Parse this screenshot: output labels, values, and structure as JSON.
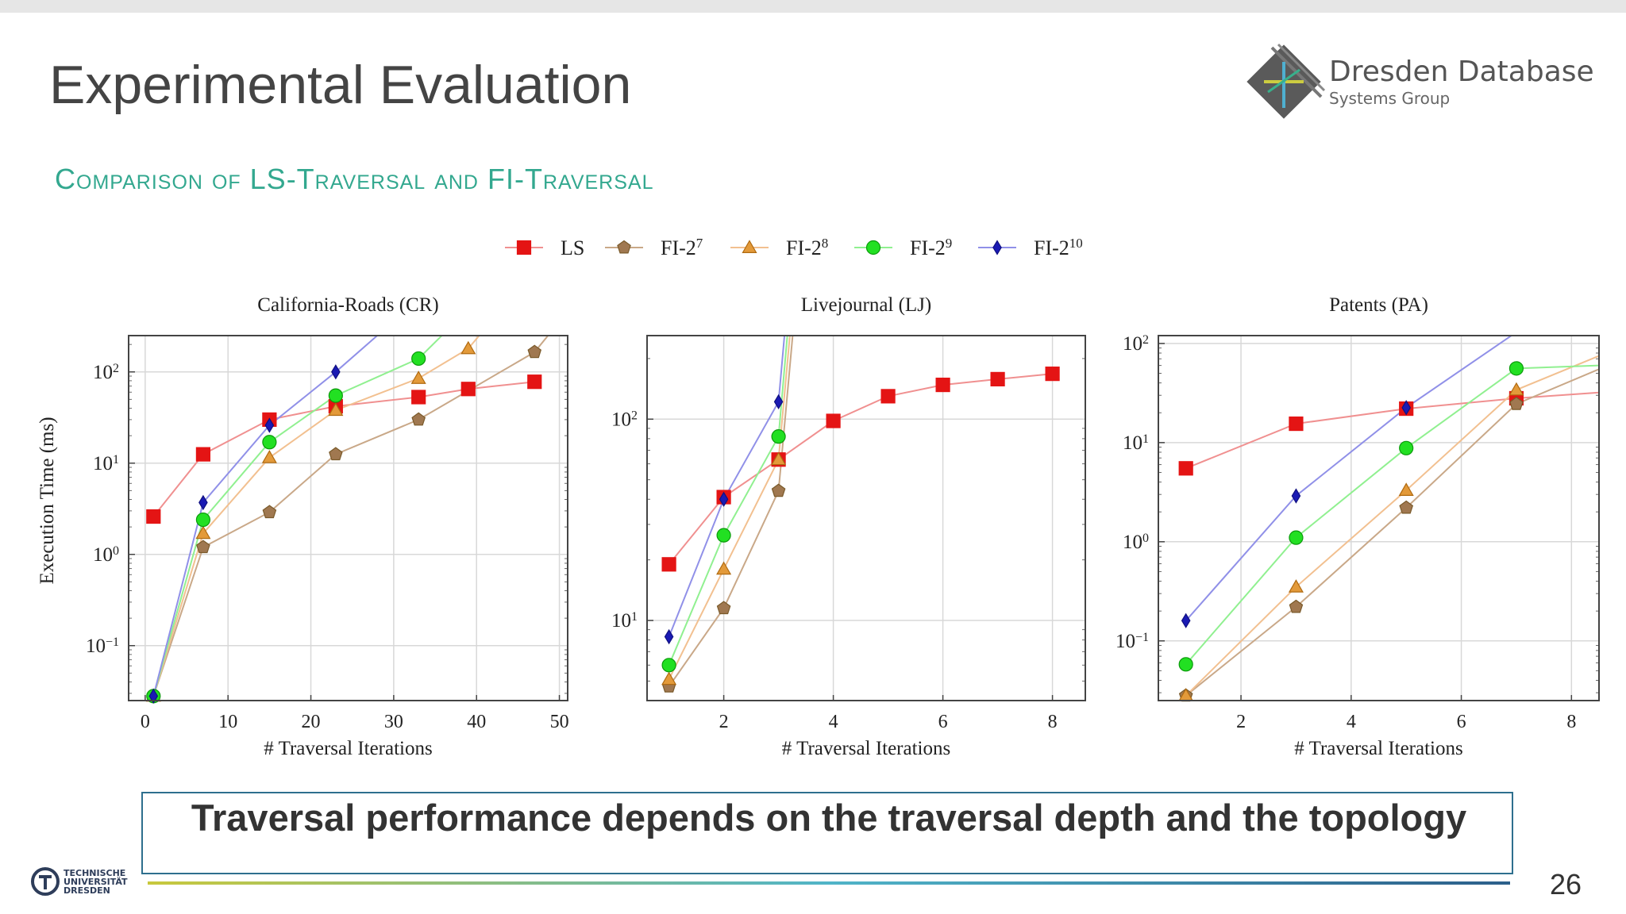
{
  "slide": {
    "title": "Experimental Evaluation",
    "subtitle": "Comparison of LS-Traversal and FI-Traversal",
    "takeaway": "Traversal performance depends on the traversal depth and the topology",
    "page_number": "26",
    "logo_main": "Dresden Database",
    "logo_sub": "Systems Group",
    "university": "TECHNISCHE\nUNIVERSITÄT\nDRESDEN"
  },
  "legend": [
    {
      "name": "LS",
      "sup": ""
    },
    {
      "name": "FI-2",
      "sup": "7"
    },
    {
      "name": "FI-2",
      "sup": "8"
    },
    {
      "name": "FI-2",
      "sup": "9"
    },
    {
      "name": "FI-2",
      "sup": "10"
    }
  ],
  "series_style": [
    {
      "color": "#e41414",
      "fill": "#e41414",
      "marker": "square",
      "line": "#f09090"
    },
    {
      "color": "#7a5a2a",
      "fill": "#a07850",
      "marker": "pentagon",
      "line": "#c9a888"
    },
    {
      "color": "#b06a10",
      "fill": "#e39a3a",
      "marker": "triangle",
      "line": "#f2c090"
    },
    {
      "color": "#0b9a0b",
      "fill": "#22e022",
      "marker": "circle",
      "line": "#90f090"
    },
    {
      "color": "#101080",
      "fill": "#1a1ab4",
      "marker": "diamond",
      "line": "#9090e8"
    }
  ],
  "chart_data": [
    {
      "type": "line",
      "title": "California-Roads (CR)",
      "xlabel": "# Traversal Iterations",
      "ylabel": "Execution Time (ms)",
      "y_scale": "log",
      "xlim": [
        -2,
        51
      ],
      "ylim": [
        0.025,
        250
      ],
      "xticks": [
        0,
        10,
        20,
        30,
        40,
        50
      ],
      "yticks": [
        {
          "v": 0.1,
          "label": "10^-1"
        },
        {
          "v": 1,
          "label": "10^0"
        },
        {
          "v": 10,
          "label": "10^1"
        },
        {
          "v": 100,
          "label": "10^2"
        }
      ],
      "series": [
        {
          "name": "LS",
          "x": [
            1,
            7,
            15,
            23,
            33,
            39,
            47
          ],
          "y": [
            2.6,
            12.5,
            30,
            42,
            53,
            65,
            78
          ]
        },
        {
          "name": "FI-2^7",
          "x": [
            1,
            7,
            15,
            23,
            33,
            47
          ],
          "y": [
            0.028,
            1.2,
            2.9,
            12.5,
            30,
            165
          ],
          "extend": [
            51,
            460
          ]
        },
        {
          "name": "FI-2^8",
          "x": [
            1,
            7,
            15,
            23,
            33,
            39
          ],
          "y": [
            0.028,
            1.7,
            11.5,
            38,
            85,
            180
          ],
          "extend": [
            42,
            380
          ]
        },
        {
          "name": "FI-2^9",
          "x": [
            1,
            7,
            15,
            23,
            33
          ],
          "y": [
            0.028,
            2.4,
            17,
            55,
            140
          ],
          "extend": [
            37,
            320
          ]
        },
        {
          "name": "FI-2^10",
          "x": [
            1,
            7,
            15,
            23
          ],
          "y": [
            0.028,
            3.7,
            26,
            100
          ],
          "extend": [
            29,
            300
          ]
        }
      ]
    },
    {
      "type": "line",
      "title": "Livejournal (LJ)",
      "xlabel": "# Traversal Iterations",
      "ylabel": "",
      "y_scale": "log",
      "xlim": [
        0.6,
        8.6
      ],
      "ylim": [
        4,
        260
      ],
      "xticks": [
        2,
        4,
        6,
        8
      ],
      "yticks": [
        {
          "v": 10,
          "label": "10^1"
        },
        {
          "v": 100,
          "label": "10^2"
        }
      ],
      "series": [
        {
          "name": "LS",
          "x": [
            1,
            2,
            3,
            4,
            5,
            6,
            7,
            8
          ],
          "y": [
            19,
            41,
            63,
            98,
            130,
            148,
            158,
            168
          ]
        },
        {
          "name": "FI-2^7",
          "x": [
            1,
            2,
            3
          ],
          "y": [
            4.7,
            11.5,
            44
          ],
          "extend": [
            3.32,
            400
          ]
        },
        {
          "name": "FI-2^8",
          "x": [
            1,
            2,
            3
          ],
          "y": [
            5.1,
            18,
            63
          ],
          "extend": [
            3.27,
            400
          ]
        },
        {
          "name": "FI-2^9",
          "x": [
            1,
            2,
            3
          ],
          "y": [
            6,
            26.5,
            82
          ],
          "extend": [
            3.22,
            400
          ]
        },
        {
          "name": "FI-2^10",
          "x": [
            1,
            2,
            3
          ],
          "y": [
            8.3,
            40,
            122
          ],
          "extend": [
            3.17,
            400
          ]
        }
      ]
    },
    {
      "type": "line",
      "title": "Patents (PA)",
      "xlabel": "# Traversal Iterations",
      "ylabel": "",
      "y_scale": "log",
      "xlim": [
        0.5,
        8.5
      ],
      "ylim": [
        0.025,
        120
      ],
      "xticks": [
        2,
        4,
        6,
        8
      ],
      "yticks": [
        {
          "v": 0.1,
          "label": "10^-1"
        },
        {
          "v": 1,
          "label": "10^0"
        },
        {
          "v": 10,
          "label": "10^1"
        },
        {
          "v": 100,
          "label": "10^2"
        }
      ],
      "series": [
        {
          "name": "LS",
          "x": [
            1,
            3,
            5,
            7
          ],
          "y": [
            5.5,
            15.5,
            22,
            28
          ],
          "extend": [
            8.5,
            32
          ]
        },
        {
          "name": "FI-2^7",
          "x": [
            1,
            3,
            5,
            7
          ],
          "y": [
            0.028,
            0.22,
            2.2,
            24.5
          ],
          "extend": [
            8.5,
            55
          ]
        },
        {
          "name": "FI-2^8",
          "x": [
            1,
            3,
            5,
            7
          ],
          "y": [
            0.028,
            0.35,
            3.3,
            34
          ],
          "extend": [
            8.5,
            75
          ]
        },
        {
          "name": "FI-2^9",
          "x": [
            1,
            3,
            5,
            7
          ],
          "y": [
            0.058,
            1.1,
            8.8,
            56
          ],
          "extend": [
            8.5,
            60
          ]
        },
        {
          "name": "FI-2^10",
          "x": [
            1,
            3,
            5
          ],
          "y": [
            0.16,
            2.9,
            22.5
          ],
          "extend": [
            7,
            130
          ]
        }
      ]
    }
  ]
}
